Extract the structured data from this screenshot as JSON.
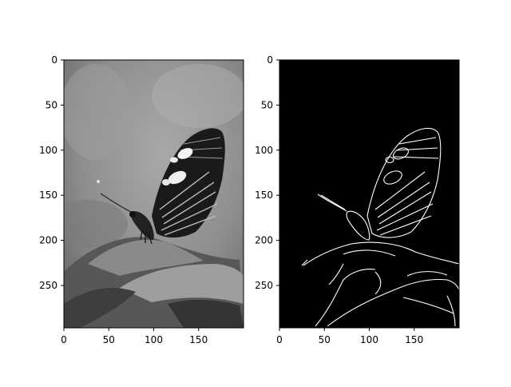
{
  "figure": {
    "background": "#ffffff",
    "panels": [
      {
        "id": "left",
        "kind": "grayscale-photo",
        "subject_icon": "butterfly-photo",
        "x_ticks": [
          "0",
          "50",
          "100",
          "150"
        ],
        "y_ticks": [
          "0",
          "50",
          "100",
          "150",
          "200",
          "250"
        ],
        "xlim": [
          0,
          200
        ],
        "ylim": [
          0,
          297
        ],
        "y_inverted": true,
        "x_tick_values": [
          0,
          50,
          100,
          150
        ],
        "y_tick_values": [
          0,
          50,
          100,
          150,
          200,
          250
        ]
      },
      {
        "id": "right",
        "kind": "edge-map",
        "subject_icon": "butterfly-edges",
        "background_color": "#000000",
        "edge_color": "#ffffff",
        "x_ticks": [
          "0",
          "50",
          "100",
          "150"
        ],
        "y_ticks": [
          "0",
          "50",
          "100",
          "150",
          "200",
          "250"
        ],
        "xlim": [
          0,
          200
        ],
        "ylim": [
          0,
          297
        ],
        "y_inverted": true,
        "x_tick_values": [
          0,
          50,
          100,
          150
        ],
        "y_tick_values": [
          0,
          50,
          100,
          150,
          200,
          250
        ]
      }
    ]
  }
}
